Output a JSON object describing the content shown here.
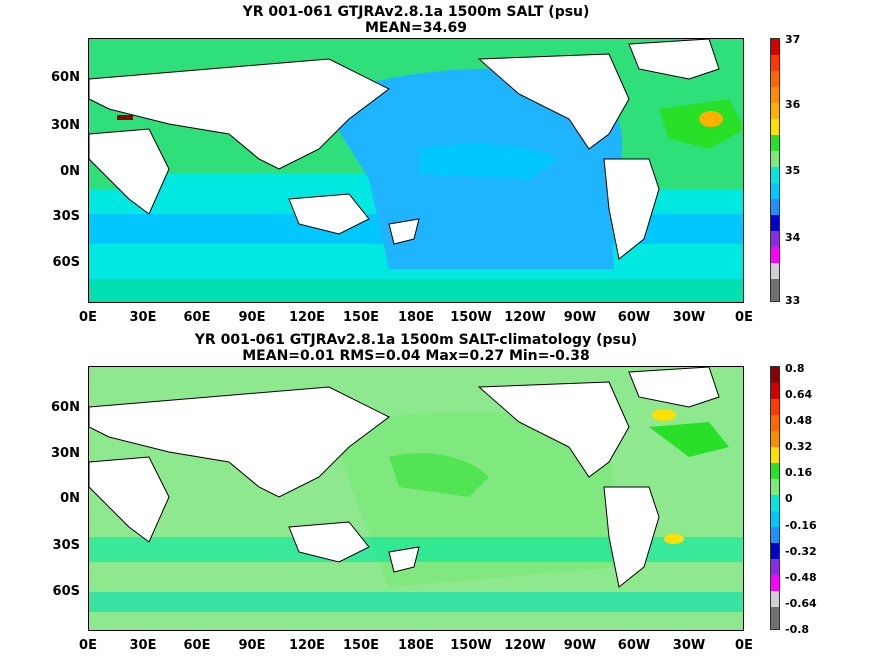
{
  "top_panel": {
    "title_line1": "YR 001-061 GTJRAv2.8.1a 1500m SALT (psu)",
    "title_line2": "MEAN=34.69",
    "colorbar_labels": [
      "37",
      "36",
      "35",
      "34",
      "33"
    ],
    "colorbar_colors": [
      "#8b0000",
      "#d40000",
      "#ff5a00",
      "#ff8c00",
      "#ffb000",
      "#ffe000",
      "#28e028",
      "#7fe87f",
      "#00e0b0",
      "#00c8ff",
      "#1e90ff",
      "#0000cd",
      "#8a2be2",
      "#ff00ff",
      "#d0d0d0",
      "#707070"
    ]
  },
  "bottom_panel": {
    "title_line1": "YR 001-061 GTJRAv2.8.1a 1500m SALT-climatology (psu)",
    "title_line2": "MEAN=0.01   RMS=0.04   Max=0.27   Min=-0.38",
    "colorbar_labels": [
      "0.8",
      "0.64",
      "0.48",
      "0.32",
      "0.16",
      "0",
      "-0.16",
      "-0.32",
      "-0.48",
      "-0.64",
      "-0.8"
    ],
    "colorbar_colors": [
      "#8b0000",
      "#d40000",
      "#ff5a00",
      "#ff8c00",
      "#ffb000",
      "#ffe000",
      "#28e028",
      "#7fe87f",
      "#00e0b0",
      "#00c8ff",
      "#1e90ff",
      "#0000cd",
      "#8a2be2",
      "#ff00ff",
      "#d0d0d0",
      "#707070"
    ]
  },
  "lat_labels": [
    "60N",
    "30N",
    "0N",
    "30S",
    "60S"
  ],
  "lon_labels": [
    "0E",
    "30E",
    "60E",
    "90E",
    "120E",
    "150E",
    "180E",
    "150W",
    "120W",
    "90W",
    "60W",
    "30W",
    "0E"
  ]
}
